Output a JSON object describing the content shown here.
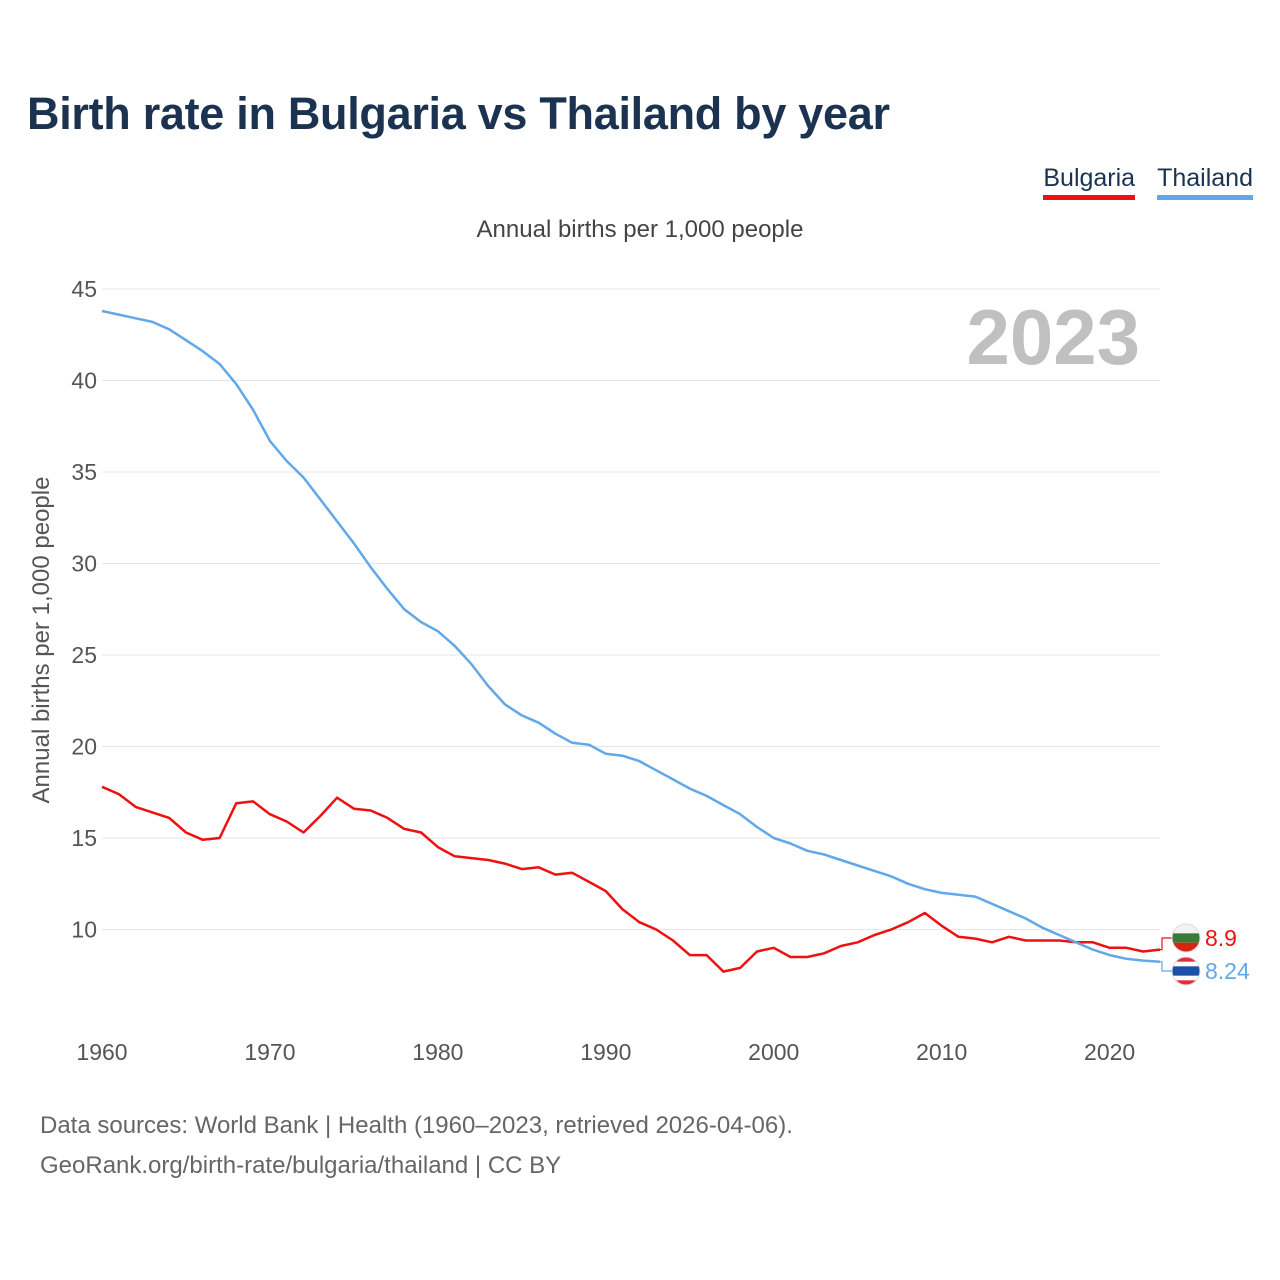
{
  "title": "Birth rate in Bulgaria vs Thailand by year",
  "subtitle": "Annual births per 1,000 people",
  "year_label": "2023",
  "legend": [
    {
      "label": "Bulgaria",
      "color": "#ee1111"
    },
    {
      "label": "Thailand",
      "color": "#61a8e8"
    }
  ],
  "source": {
    "line1": "Data sources: World Bank | Health (1960–2023, retrieved 2026-04-06).",
    "line2": "GeoRank.org/birth-rate/bulgaria/thailand | CC BY"
  },
  "chart_data": {
    "type": "line",
    "title": "Birth rate in Bulgaria vs Thailand by year",
    "xlabel": "",
    "ylabel": "Annual births per 1,000 people",
    "xlim": [
      1960,
      2023
    ],
    "ylim": [
      5,
      45
    ],
    "yticks": [
      10,
      15,
      20,
      25,
      30,
      35,
      40,
      45
    ],
    "xticks": [
      1960,
      1970,
      1980,
      1990,
      2000,
      2010,
      2020
    ],
    "grid": true,
    "x": [
      1960,
      1961,
      1962,
      1963,
      1964,
      1965,
      1966,
      1967,
      1968,
      1969,
      1970,
      1971,
      1972,
      1973,
      1974,
      1975,
      1976,
      1977,
      1978,
      1979,
      1980,
      1981,
      1982,
      1983,
      1984,
      1985,
      1986,
      1987,
      1988,
      1989,
      1990,
      1991,
      1992,
      1993,
      1994,
      1995,
      1996,
      1997,
      1998,
      1999,
      2000,
      2001,
      2002,
      2003,
      2004,
      2005,
      2006,
      2007,
      2008,
      2009,
      2010,
      2011,
      2012,
      2013,
      2014,
      2015,
      2016,
      2017,
      2018,
      2019,
      2020,
      2021,
      2022,
      2023
    ],
    "series": [
      {
        "name": "Bulgaria",
        "color": "#ee1111",
        "end_label": "8.9",
        "values": [
          17.8,
          17.4,
          16.7,
          16.4,
          16.1,
          15.3,
          14.9,
          15.0,
          16.9,
          17.0,
          16.3,
          15.9,
          15.3,
          16.2,
          17.2,
          16.6,
          16.5,
          16.1,
          15.5,
          15.3,
          14.5,
          14.0,
          13.9,
          13.8,
          13.6,
          13.3,
          13.4,
          13.0,
          13.1,
          12.6,
          12.1,
          11.1,
          10.4,
          10.0,
          9.4,
          8.6,
          8.6,
          7.7,
          7.9,
          8.8,
          9.0,
          8.5,
          8.5,
          8.7,
          9.1,
          9.3,
          9.7,
          10.0,
          10.4,
          10.9,
          10.2,
          9.6,
          9.5,
          9.3,
          9.6,
          9.4,
          9.4,
          9.4,
          9.3,
          9.3,
          9.0,
          9.0,
          8.8,
          8.9
        ]
      },
      {
        "name": "Thailand",
        "color": "#61a8e8",
        "end_label": "8.24",
        "values": [
          43.8,
          43.6,
          43.4,
          43.2,
          42.8,
          42.2,
          41.6,
          40.9,
          39.8,
          38.4,
          36.7,
          35.6,
          34.7,
          33.5,
          32.3,
          31.1,
          29.8,
          28.6,
          27.5,
          26.8,
          26.3,
          25.5,
          24.5,
          23.3,
          22.3,
          21.7,
          21.3,
          20.7,
          20.2,
          20.1,
          19.6,
          19.5,
          19.2,
          18.7,
          18.2,
          17.7,
          17.3,
          16.8,
          16.3,
          15.6,
          15.0,
          14.7,
          14.3,
          14.1,
          13.8,
          13.5,
          13.2,
          12.9,
          12.5,
          12.2,
          12.0,
          11.9,
          11.8,
          11.4,
          11.0,
          10.6,
          10.1,
          9.7,
          9.3,
          8.9,
          8.6,
          8.4,
          8.3,
          8.24
        ]
      }
    ]
  }
}
